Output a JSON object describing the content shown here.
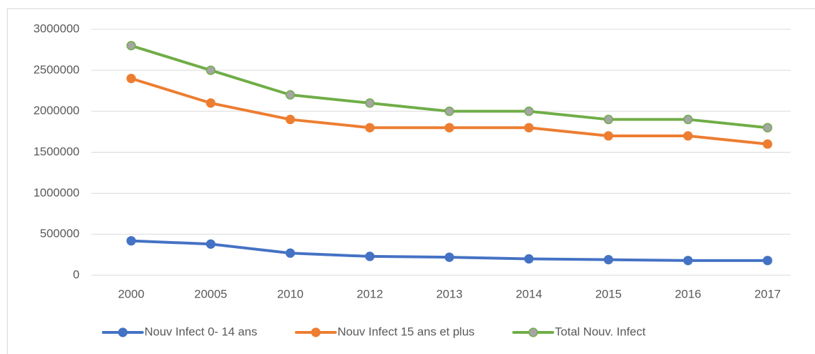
{
  "chart_data": {
    "type": "line",
    "categories": [
      "2000",
      "20005",
      "2010",
      "2012",
      "2013",
      "2014",
      "2015",
      "2016",
      "2017"
    ],
    "series": [
      {
        "name": "Nouv Infect 0- 14 ans",
        "color": "#4472c4",
        "marker_color": "#4472c4",
        "values": [
          420000,
          380000,
          270000,
          230000,
          220000,
          200000,
          190000,
          180000,
          180000
        ]
      },
      {
        "name": "Nouv Infect 15 ans et plus",
        "color": "#ed7d31",
        "marker_color": "#ed7d31",
        "values": [
          2400000,
          2100000,
          1900000,
          1800000,
          1800000,
          1800000,
          1700000,
          1700000,
          1600000
        ]
      },
      {
        "name": "Total Nouv. Infect",
        "color": "#70ad47",
        "marker_color": "#a5a5a5",
        "values": [
          2800000,
          2500000,
          2200000,
          2100000,
          2000000,
          2000000,
          1900000,
          1900000,
          1800000
        ]
      }
    ],
    "ylim": [
      0,
      3000000
    ],
    "yticks": [
      0,
      500000,
      1000000,
      1500000,
      2000000,
      2500000,
      3000000
    ],
    "grid": true,
    "legend": "bottom"
  }
}
